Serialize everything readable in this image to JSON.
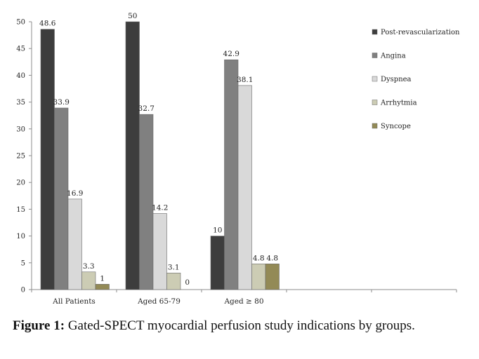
{
  "chart_data": {
    "type": "bar",
    "categories": [
      "All Patients",
      "Aged 65-79",
      "Aged ≥ 80",
      "",
      ""
    ],
    "series": [
      {
        "name": "Post-revascularization",
        "color": "#3d3d3d",
        "values": [
          48.6,
          50,
          10,
          null,
          null
        ]
      },
      {
        "name": "Angina",
        "color": "#808080",
        "values": [
          33.9,
          32.7,
          42.9,
          null,
          null
        ]
      },
      {
        "name": "Dyspnea",
        "color": "#d9d9d9",
        "values": [
          16.9,
          14.2,
          38.1,
          null,
          null
        ]
      },
      {
        "name": "Arrhytmia",
        "color": "#ccccb4",
        "values": [
          3.3,
          3.1,
          4.8,
          null,
          null
        ]
      },
      {
        "name": "Syncope",
        "color": "#938a56",
        "values": [
          1,
          0,
          4.8,
          null,
          null
        ]
      }
    ],
    "ylim": [
      0,
      50
    ],
    "yticks": [
      0,
      5,
      10,
      15,
      20,
      25,
      30,
      35,
      40,
      45,
      50
    ],
    "grid": false,
    "legend": "right",
    "title": "",
    "xlabel": "",
    "ylabel": ""
  },
  "caption": {
    "lead": "Figure 1:",
    "text": " Gated-SPECT myocardial perfusion study indications by groups."
  }
}
